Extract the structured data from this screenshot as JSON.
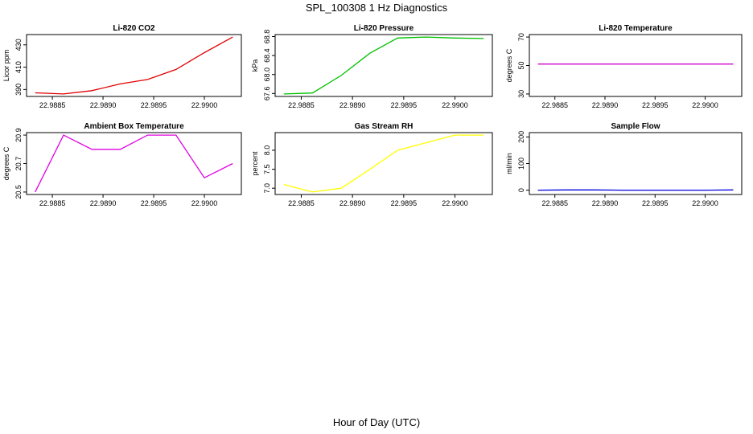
{
  "title": "SPL_100308  1 Hz Diagnostics",
  "xlabel": "Hour of Day (UTC)",
  "chart_data": [
    {
      "type": "line",
      "title": "Li-820 CO2",
      "ylabel": "Licor ppm",
      "color": "#e00000",
      "x": [
        22.98833,
        22.98861,
        22.98889,
        22.98917,
        22.98944,
        22.98972,
        22.99,
        22.99028
      ],
      "y": [
        387,
        386,
        389,
        395,
        399,
        408,
        423,
        437
      ],
      "xlim": [
        22.98833,
        22.99028
      ],
      "ylim": [
        386,
        437
      ],
      "xticks": [
        "22.9885",
        "22.9890",
        "22.9895",
        "22.9900"
      ],
      "yticks": [
        "390",
        "410",
        "430"
      ]
    },
    {
      "type": "line",
      "title": "Li-820 Pressure",
      "ylabel": "kPa",
      "color": "#00c000",
      "x": [
        22.98833,
        22.98861,
        22.98889,
        22.98917,
        22.98944,
        22.98972,
        22.99,
        22.99028
      ],
      "y": [
        67.59,
        67.61,
        67.98,
        68.45,
        68.77,
        68.79,
        68.77,
        68.76
      ],
      "xlim": [
        22.98833,
        22.99028
      ],
      "ylim": [
        67.59,
        68.79
      ],
      "xticks": [
        "22.9885",
        "22.9890",
        "22.9895",
        "22.9900"
      ],
      "yticks": [
        "67.6",
        "68.0",
        "68.4",
        "68.8"
      ]
    },
    {
      "type": "line",
      "title": "Li-820 Temperature",
      "ylabel": "degrees C",
      "color": "#d000d0",
      "x": [
        22.98833,
        22.99028
      ],
      "y": [
        51,
        51
      ],
      "xlim": [
        22.98833,
        22.99028
      ],
      "ylim": [
        30,
        70
      ],
      "xticks": [
        "22.9885",
        "22.9890",
        "22.9895",
        "22.9900"
      ],
      "yticks": [
        "30",
        "50",
        "70"
      ]
    },
    {
      "type": "line",
      "title": "Ambient Box Temperature",
      "ylabel": "degrees C",
      "color": "#e000e0",
      "x": [
        22.98833,
        22.98861,
        22.98889,
        22.98917,
        22.98944,
        22.98972,
        22.99,
        22.99028
      ],
      "y": [
        20.5,
        20.9,
        20.8,
        20.8,
        20.9,
        20.9,
        20.6,
        20.7
      ],
      "xlim": [
        22.98833,
        22.99028
      ],
      "ylim": [
        20.5,
        20.9
      ],
      "xticks": [
        "22.9885",
        "22.9890",
        "22.9895",
        "22.9900"
      ],
      "yticks": [
        "20.5",
        "20.7",
        "20.9"
      ]
    },
    {
      "type": "line",
      "title": "Gas Stream RH",
      "ylabel": "percent",
      "color": "#ffff00",
      "x": [
        22.98833,
        22.98861,
        22.98889,
        22.98917,
        22.98944,
        22.98972,
        22.99,
        22.99028
      ],
      "y": [
        7.1,
        6.9,
        7.0,
        7.5,
        8.0,
        8.2,
        8.4,
        8.4
      ],
      "xlim": [
        22.98833,
        22.99028
      ],
      "ylim": [
        6.9,
        8.4
      ],
      "xticks": [
        "22.9885",
        "22.9890",
        "22.9895",
        "22.9900"
      ],
      "yticks": [
        "7.0",
        "7.5",
        "8.0"
      ]
    },
    {
      "type": "line",
      "title": "Sample Flow",
      "ylabel": "ml/min",
      "color": "#0000e0",
      "x": [
        22.98833,
        22.98861,
        22.98889,
        22.98917,
        22.98944,
        22.98972,
        22.99,
        22.99028
      ],
      "y": [
        0,
        1,
        1,
        0,
        0,
        0,
        0,
        1
      ],
      "xlim": [
        22.98833,
        22.99028
      ],
      "ylim": [
        -7,
        207
      ],
      "xticks": [
        "22.9885",
        "22.9890",
        "22.9895",
        "22.9900"
      ],
      "yticks": [
        "0",
        "100",
        "200"
      ]
    }
  ]
}
